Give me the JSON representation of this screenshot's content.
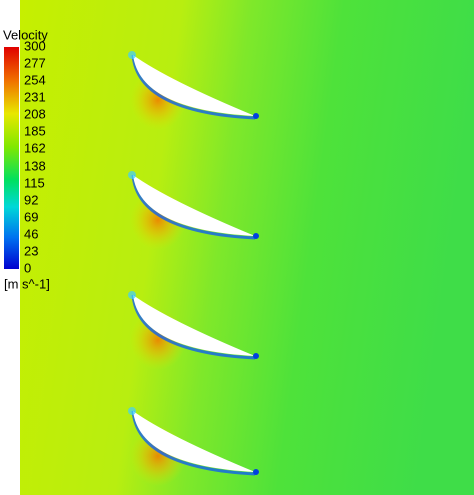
{
  "legend": {
    "title": "Velocity",
    "ticks": [
      300,
      277,
      254,
      231,
      208,
      185,
      162,
      138,
      115,
      92,
      69,
      46,
      23,
      0
    ],
    "unit": "[m s^-1]"
  }
}
